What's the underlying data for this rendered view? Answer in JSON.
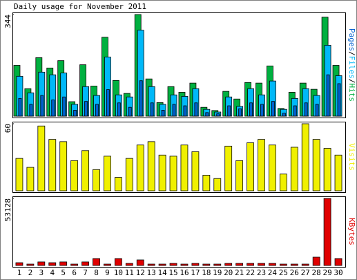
{
  "chart_data": [
    {
      "type": "bar",
      "title": "Daily usage for November 2011",
      "ylim": [
        0,
        344
      ],
      "yticks": [
        344
      ],
      "legend_separator": "/",
      "series": [
        {
          "name": "Pages",
          "color": "#0060d0",
          "values": [
            60,
            40,
            70,
            55,
            65,
            20,
            50,
            40,
            90,
            45,
            30,
            120,
            45,
            20,
            40,
            35,
            45,
            12,
            8,
            35,
            25,
            45,
            40,
            50,
            10,
            35,
            45,
            40,
            140,
            110
          ]
        },
        {
          "name": "Files",
          "color": "#00b8f8",
          "values": [
            135,
            79,
            149,
            140,
            146,
            40,
            100,
            70,
            200,
            72,
            65,
            291,
            100,
            40,
            72,
            67,
            93,
            23,
            14,
            65,
            33,
            93,
            72,
            119,
            23,
            60,
            93,
            70,
            240,
            137
          ]
        },
        {
          "name": "Hits",
          "color": "#00b040",
          "values": [
            172,
            93,
            198,
            163,
            188,
            49,
            174,
            102,
            267,
            121,
            77,
            344,
            126,
            46,
            100,
            81,
            112,
            30,
            19,
            84,
            58,
            114,
            112,
            170,
            26,
            81,
            112,
            91,
            335,
            172
          ]
        }
      ]
    },
    {
      "type": "bar",
      "ylim": [
        0,
        60
      ],
      "yticks": [
        60
      ],
      "series": [
        {
          "name": "Visits",
          "color": "#f0f000",
          "values": [
            29,
            21,
            58,
            46,
            44,
            27,
            36,
            19,
            31,
            12,
            29,
            41,
            44,
            32,
            31,
            41,
            35,
            14,
            11,
            40,
            27,
            43,
            46,
            41,
            15,
            39,
            60,
            46,
            38,
            32
          ]
        }
      ]
    },
    {
      "type": "bar",
      "ylim": [
        0,
        53128
      ],
      "yticks": [
        53128
      ],
      "categories": [
        "1",
        "2",
        "3",
        "4",
        "5",
        "6",
        "7",
        "8",
        "9",
        "10",
        "11",
        "12",
        "13",
        "14",
        "15",
        "16",
        "17",
        "18",
        "19",
        "20",
        "21",
        "22",
        "23",
        "24",
        "25",
        "26",
        "27",
        "28",
        "29",
        "30"
      ],
      "highlight_categories": [
        "5",
        "6",
        "12",
        "13",
        "19",
        "20",
        "26",
        "27"
      ],
      "highlight_color": "#00a000",
      "series": [
        {
          "name": "KBytes",
          "color": "#e00000",
          "values": [
            2200,
            1100,
            2800,
            2200,
            2800,
            1100,
            2800,
            5500,
            1100,
            5500,
            1700,
            4400,
            1100,
            1100,
            1700,
            1100,
            1700,
            1100,
            1100,
            1700,
            1700,
            1700,
            1700,
            1700,
            1100,
            1100,
            1100,
            6600,
            53128,
            5500
          ]
        }
      ]
    }
  ]
}
